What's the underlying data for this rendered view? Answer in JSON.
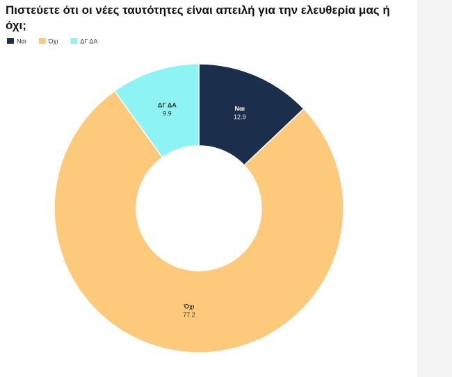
{
  "chart_data": {
    "type": "donut",
    "title": "Πιστεύετε ότι οι νέες ταυτότητες είναι απειλή για την ελευθερία μας ή όχι;",
    "categories": [
      "Ναι",
      "Όχι",
      "ΔΓ ΔΑ"
    ],
    "values": [
      12.9,
      77.2,
      9.9
    ],
    "colors": [
      "#1b2e4b",
      "#fdc97a",
      "#8ef3f3"
    ]
  }
}
